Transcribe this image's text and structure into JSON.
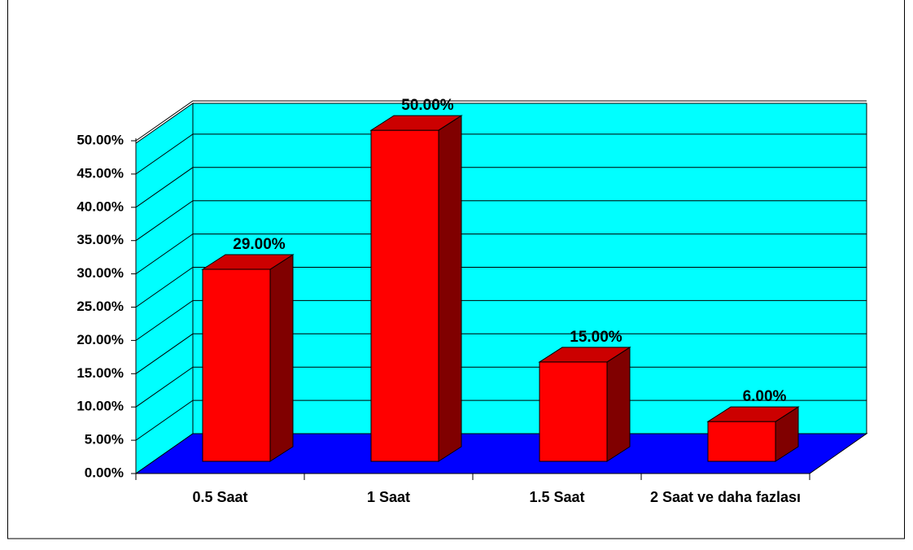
{
  "chart_data": {
    "type": "bar",
    "categories": [
      "0.5 Saat",
      "1 Saat",
      "1.5 Saat",
      "2 Saat ve daha fazlası"
    ],
    "values": [
      29,
      50,
      15,
      6
    ],
    "value_labels": [
      "29.00%",
      "50.00%",
      "15.00%",
      "6.00%"
    ],
    "color": "#ff0000",
    "ylim": [
      0,
      50
    ],
    "yticks": [
      {
        "value": 0,
        "label": "0.00%"
      },
      {
        "value": 5,
        "label": "5.00%"
      },
      {
        "value": 10,
        "label": "10.00%"
      },
      {
        "value": 15,
        "label": "15.00%"
      },
      {
        "value": 20,
        "label": "20.00%"
      },
      {
        "value": 25,
        "label": "25.00%"
      },
      {
        "value": 30,
        "label": "30.00%"
      },
      {
        "value": 35,
        "label": "35.00%"
      },
      {
        "value": 40,
        "label": "40.00%"
      },
      {
        "value": 45,
        "label": "45.00%"
      },
      {
        "value": 50,
        "label": "50.00%"
      }
    ],
    "grid": true
  }
}
